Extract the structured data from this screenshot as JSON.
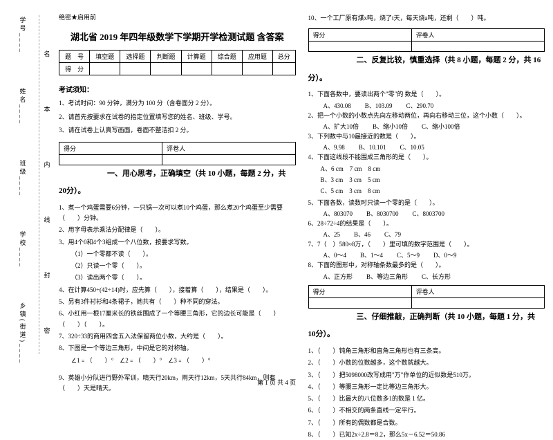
{
  "margin": {
    "items": [
      "学号____",
      "姓名____",
      "班级____",
      "学校____",
      "乡镇(街道)____"
    ],
    "dashcol": [
      "题",
      "答",
      "内",
      "线",
      "封",
      "密"
    ],
    "midchars": [
      "名",
      "本",
      "内",
      "线",
      "封",
      "密"
    ]
  },
  "secret": "绝密★启用前",
  "title": "湖北省 2019 年四年级数学下学期开学检测试题 含答案",
  "score_headers": [
    "题　号",
    "填空题",
    "选择题",
    "判断题",
    "计算题",
    "综合题",
    "应用题",
    "总分"
  ],
  "score_row": "得　分",
  "notice_title": "考试须知：",
  "notices": [
    "1、考试时间：90 分钟，满分为 100 分（含卷面分 2 分）。",
    "2、请首先按要求在试卷的指定位置填写您的姓名、班级、学号。",
    "3、请在试卷上认真写画面，卷面不整洁扣 2 分。"
  ],
  "mini": {
    "c1": "得分",
    "c2": "评卷人"
  },
  "section1": "一、用心思考，正确填空（共 10 小题，每题 2 分，共",
  "section1b": "20分）。",
  "s1q": [
    "1、煮一个鸡蛋需要6分钟，一只锅一次可以煮10个鸡蛋，那么煮20个鸡蛋至少需要（　　）分钟。",
    "2、用字母表示乘法分配律是（　　）。",
    "3、用4个0和4个3组成一个八位数，按要求写数。",
    "（1）一个零都不读（　　）。",
    "（2）只读一个零（　　）。",
    "（3）读出两个零（　　）。",
    "4、在计算450÷(42÷14)时，应先算（　　），接着算（　　），结果是（　　）。",
    "5、另有3件衬衫和4条裙子，她共有（　　）种不同的穿法。",
    "6、小红用一根17厘米长的铁丝围成了一个等腰三角形，它的边长可能是（　　）（　　）（　　）。",
    "7、320÷33的商用四舍五入法保留两位小数，大约是（　　）。",
    "8、下图是一个等边三角形，中间是它的对称轴。",
    "∠1﹦（　　）°　∠2﹦（　　）°　∠3﹦（　　）°",
    "9、英雄小分队进行野外军训，晴天行20km，雨天行12km，5天共行84km，则有（　　）天是晴天。"
  ],
  "rightTop": "10、一个工厂原有煤x吨，烧了t天，每天烧a吨，还剩（　　）吨。",
  "section2": "二、反复比较，慎重选择（共 8 小题，每题 2 分，共 16",
  "section2b": "分）。",
  "s2q": [
    {
      "stem": "1、下面各数中，要读出两个\"零\"的 数是（　　）。",
      "opts": [
        "A、430.08",
        "B、103.09",
        "C、290.70"
      ]
    },
    {
      "stem": "2、把一个小数的小数点先向左移动两位，再向右移动三位，这个小数（　　）。",
      "opts": [
        "A、扩大10倍",
        "B、缩小10倍",
        "C、缩小100倍"
      ]
    },
    {
      "stem": "3、下列数中与10最接近的数是（　　）。",
      "opts": [
        "A、9.98",
        "B、10.101",
        "C、10.05"
      ]
    },
    {
      "stem": "4、下面这线段不能围成三角形的是（　　）。",
      "opts": [
        "A、6 cm　7 cm　8 cm",
        "B、3 cm　3 cm　5 cm",
        "C、5 cm　3 cm　8 cm"
      ]
    },
    {
      "stem": "5、下面各数，读数时只读一个零的是（　　）。",
      "opts": [
        "A、803070",
        "B、8030700",
        "C、8003700"
      ]
    },
    {
      "stem": "6、28÷72÷4的结果是（　　）。",
      "opts": [
        "A、25",
        "B、46",
        "C、79"
      ]
    },
    {
      "stem": "7、7（　）580≈8万，（　　）里可填的数字范围是（　　）。",
      "opts": [
        "A、0～4",
        "B、1～4",
        "C、5～9",
        "D、0～9"
      ]
    },
    {
      "stem": "8、下面的图形中，对称轴条数最多的是（　　）。",
      "opts": [
        "A、正方形",
        "B、等边三角形",
        "C、长方形"
      ]
    }
  ],
  "section3": "三、仔细推敲，正确判断（共 10 小题，每题 1 分，共",
  "section3b": "10分）。",
  "s3q": [
    "1、（　　）钝角三角形和直角三角形也有三条高。",
    "2、（　　）小数的位数越多，这个数就越大。",
    "3、（　　）把5098000改写成用\"万\"作单位的近似数是510万。",
    "4、（　　）等腰三角形一定比等边三角形大。",
    "5、（　　）比最大的八位数多1的数是 1 亿。",
    "6、（　　）不相交的两条直线一定平行。",
    "7、（　　）所有的偶数都是合数。",
    "8、（　　）已知2x÷2.8＝8.2，那么5x－6.52＝50.86"
  ],
  "footer": "第 1 页 共 4 页"
}
